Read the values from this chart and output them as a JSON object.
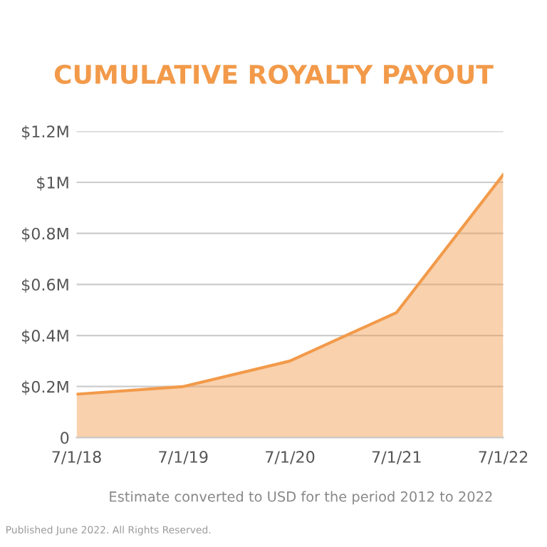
{
  "chart_data": {
    "type": "area",
    "title": "CUMULATIVE ROYALTY PAYOUT",
    "categories": [
      "7/1/18",
      "7/1/19",
      "7/1/20",
      "7/1/21",
      "7/1/22"
    ],
    "series": [
      {
        "color": "#f29a4a",
        "values": [
          0.17,
          0.2,
          0.3,
          0.49,
          1.03
        ]
      }
    ],
    "ylim": [
      0,
      1.2
    ],
    "yticks": [
      {
        "value": 0,
        "label": "0"
      },
      {
        "value": 0.2,
        "label": "$0.2M"
      },
      {
        "value": 0.4,
        "label": "$0.4M"
      },
      {
        "value": 0.6,
        "label": "$0.6M"
      },
      {
        "value": 0.8,
        "label": "$0.8M"
      },
      {
        "value": 1,
        "label": "$1M"
      },
      {
        "value": 1.2,
        "label": "$1.2M"
      }
    ],
    "grid": "y",
    "annotations": [
      "Estimate converted to USD for the period 2012 to 2022",
      "Published June 2022. All Rights Reserved."
    ]
  }
}
